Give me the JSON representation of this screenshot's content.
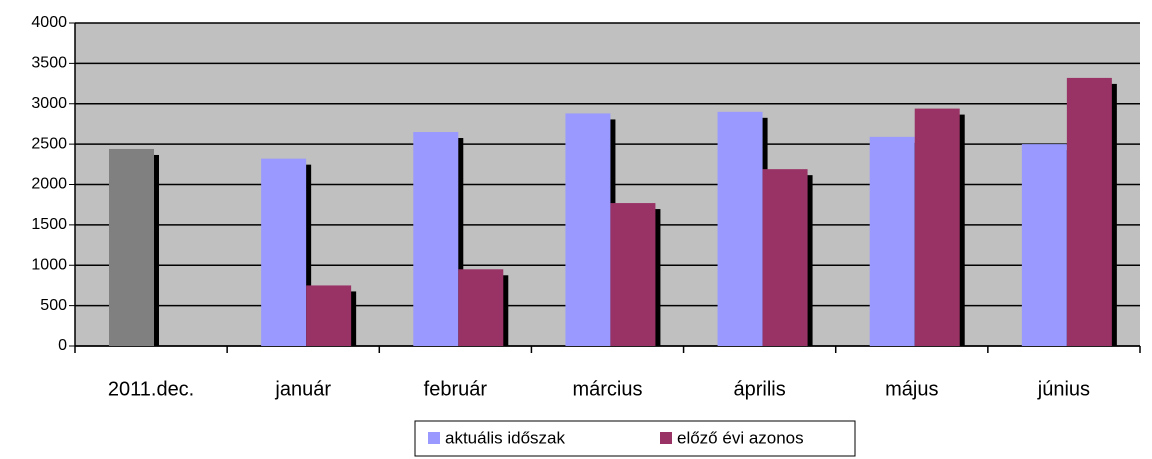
{
  "chart_data": {
    "type": "bar",
    "categories": [
      "2011.dec.",
      "január",
      "február",
      "március",
      "április",
      "május",
      "június"
    ],
    "series": [
      {
        "name": "aktuális időszak",
        "color": "#9999ff",
        "point_colors": [
          "#808080",
          "#9999ff",
          "#9999ff",
          "#9999ff",
          "#9999ff",
          "#9999ff",
          "#9999ff"
        ],
        "values": [
          2440,
          2320,
          2650,
          2880,
          2900,
          2590,
          2500
        ]
      },
      {
        "name": "előző évi azonos",
        "color": "#993366",
        "values": [
          null,
          750,
          950,
          1770,
          2190,
          2940,
          3320
        ]
      }
    ],
    "ylim": [
      0,
      4000
    ],
    "yticks": [
      0,
      500,
      1000,
      1500,
      2000,
      2500,
      3000,
      3500,
      4000
    ],
    "grid": true,
    "legend": "bottom"
  }
}
